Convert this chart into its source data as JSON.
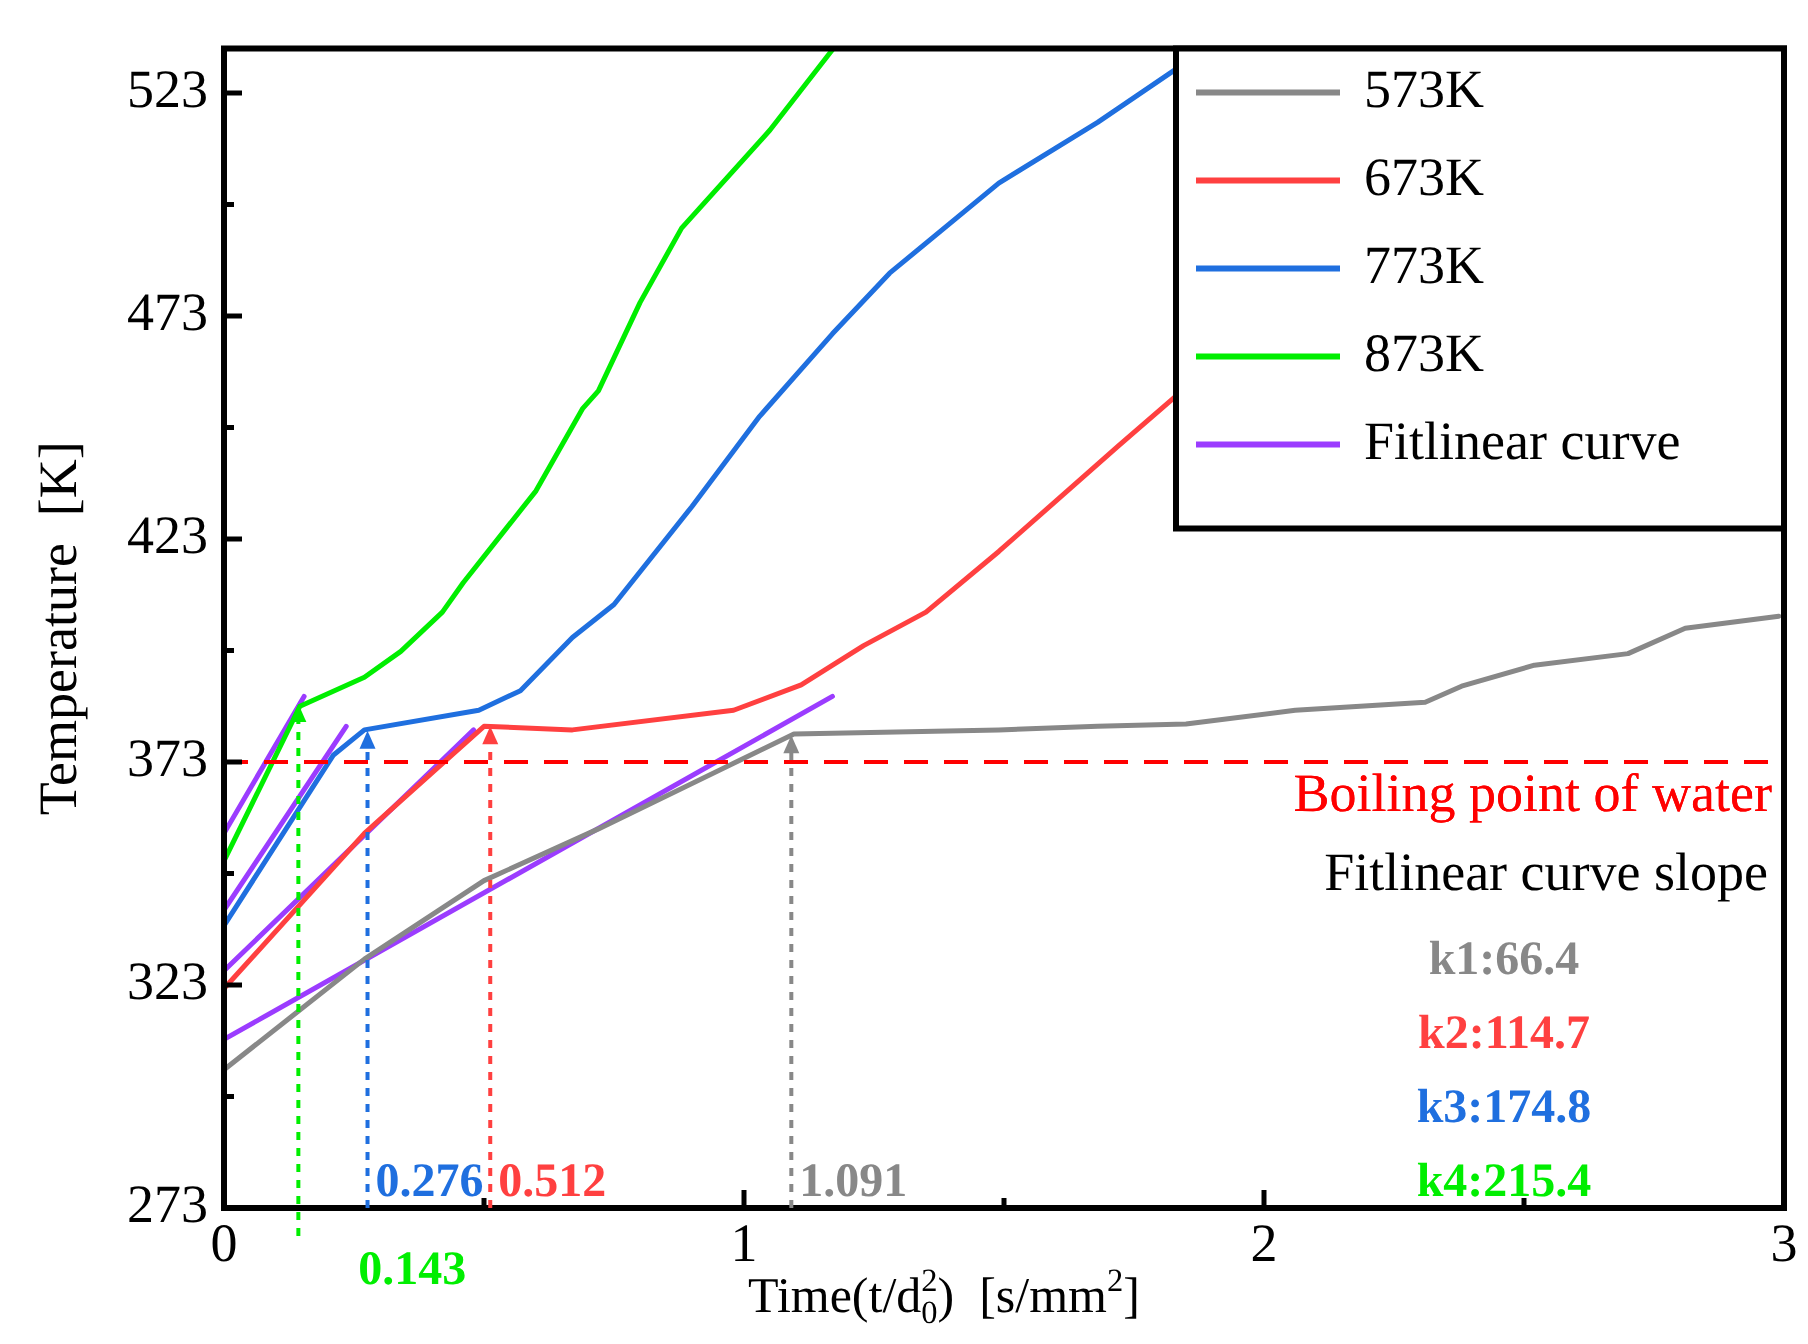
{
  "chart_data": {
    "type": "line",
    "xlabel": "Time(t/d$_{0}$$^{2}$)  [s/mm$^{2}$]",
    "ylabel": "Temperature  [K]",
    "xlim": [
      0,
      3
    ],
    "xticks": [
      0,
      {
        "value": 0.5,
        "label": null
      },
      1,
      {
        "value": 1.5,
        "label": null
      },
      2,
      {
        "value": 2.5,
        "label": null
      },
      3
    ],
    "ylim": [
      273,
      533
    ],
    "yticks": [
      273,
      {
        "value": 298,
        "label": null
      },
      323,
      {
        "value": 348,
        "label": null
      },
      373,
      {
        "value": 398,
        "label": null
      },
      423,
      {
        "value": 448,
        "label": null
      },
      473,
      {
        "value": 498,
        "label": null
      },
      523
    ],
    "grid": false,
    "legend": "top right",
    "marker": "none",
    "line_style": "solid",
    "series": [
      {
        "name": "573K",
        "color": "#888888",
        "x": [
          0,
          0.27,
          0.5,
          0.72,
          0.98,
          1.096,
          1.49,
          1.68,
          1.85,
          2.06,
          2.31,
          2.38,
          2.52,
          2.7,
          2.81,
          2.99
        ],
        "values": [
          304,
          328.8,
          346.4,
          358,
          372.7,
          379.3,
          380.2,
          381,
          381.5,
          384.6,
          386.4,
          390,
          394.7,
          397.3,
          403,
          405.7
        ]
      },
      {
        "name": "673K",
        "color": "#ff4040",
        "x": [
          0,
          0.27,
          0.5,
          0.67,
          0.98,
          1.11,
          1.23,
          1.35,
          1.49,
          1.72,
          1.83
        ],
        "values": [
          322.2,
          357,
          381,
          380.2,
          384.6,
          390.3,
          399.1,
          406.6,
          420.2,
          443.9,
          455
        ]
      },
      {
        "name": "773K",
        "color": "#1f6fdf",
        "x": [
          0,
          0.21,
          0.27,
          0.49,
          0.57,
          0.67,
          0.75,
          0.9,
          1.03,
          1.17,
          1.28,
          1.49,
          1.68,
          1.83
        ],
        "values": [
          336.3,
          374.5,
          380.2,
          384.6,
          389,
          400.9,
          408.3,
          430.3,
          450.5,
          469,
          482.6,
          502.8,
          516.4,
          528.3
        ]
      },
      {
        "name": "873K",
        "color": "#00ee00",
        "x": [
          0,
          0.146,
          0.27,
          0.34,
          0.42,
          0.46,
          0.6,
          0.69,
          0.72,
          0.8,
          0.88,
          1.05,
          1.17
        ],
        "values": [
          350.8,
          385.5,
          392,
          397.8,
          406.6,
          413.2,
          433.8,
          452.3,
          456.2,
          476,
          492.7,
          514.7,
          532.7
        ]
      },
      {
        "name": "Fitlinear curve",
        "color": "#9b3cff",
        "x": [
          0,
          1.17
        ],
        "values": [
          310.8,
          387.7
        ]
      },
      {
        "color": "#9b3cff",
        "x": [
          0,
          0.48
        ],
        "values": [
          326.2,
          380.2
        ]
      },
      {
        "color": "#9b3cff",
        "x": [
          0,
          0.235
        ],
        "values": [
          339.8,
          381
        ]
      },
      {
        "color": "#9b3cff",
        "x": [
          0,
          0.154
        ],
        "values": [
          357,
          387.7
        ]
      }
    ],
    "ref_lines": [
      {
        "axis": "y",
        "value": 373,
        "label": "Boiling point of water",
        "color": "#ff0000",
        "line_style": "dashed"
      }
    ],
    "annotations": [
      {
        "text": "0.143",
        "x": 0.143,
        "y": 386
      },
      {
        "text": "0.276",
        "x": 0.276,
        "y": 380
      },
      {
        "text": "0.512",
        "x": 0.512,
        "y": 381
      },
      {
        "text": "1.091",
        "x": 1.091,
        "y": 379
      },
      "Fitlinear curve slope",
      "k1:66.4",
      "k2:114.7",
      "k3:174.8",
      "k4:215.4"
    ]
  }
}
